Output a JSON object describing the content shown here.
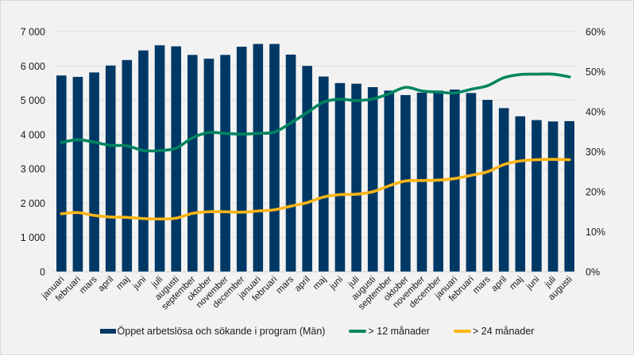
{
  "chart_data": {
    "type": "bar",
    "title": "",
    "xlabel": "",
    "ylabel": "",
    "y2label": "",
    "ylim": [
      0,
      7000
    ],
    "y2lim": [
      0,
      0.6
    ],
    "yticks": [
      "0",
      "1 000",
      "2 000",
      "3 000",
      "4 000",
      "5 000",
      "6 000",
      "7 000"
    ],
    "y2ticks": [
      "0%",
      "10%",
      "20%",
      "30%",
      "40%",
      "50%",
      "60%"
    ],
    "grid": true,
    "legend_position": "bottom",
    "categories": [
      "januari",
      "februari",
      "mars",
      "april",
      "maj",
      "juni",
      "juli",
      "augusti",
      "september",
      "oktober",
      "november",
      "december",
      "januari",
      "februari",
      "mars",
      "april",
      "maj",
      "juni",
      "juli",
      "augusti",
      "september",
      "oktober",
      "november",
      "december",
      "januari",
      "februari",
      "mars",
      "april",
      "maj",
      "juni",
      "juli",
      "augusti"
    ],
    "series": [
      {
        "name": "Öppet arbetslösa och sökande i program (Män)",
        "type": "bar",
        "axis": "left",
        "color": "#003865",
        "values": [
          5730,
          5690,
          5820,
          6020,
          6180,
          6460,
          6610,
          6580,
          6330,
          6220,
          6330,
          6570,
          6650,
          6650,
          6340,
          6010,
          5700,
          5510,
          5490,
          5390,
          5290,
          5160,
          5230,
          5290,
          5320,
          5220,
          5020,
          4780,
          4540,
          4430,
          4390,
          4400
        ]
      },
      {
        "name": "> 12 månader",
        "type": "line",
        "axis": "right",
        "color": "#00845f",
        "values": [
          0.323,
          0.33,
          0.324,
          0.316,
          0.315,
          0.303,
          0.303,
          0.309,
          0.335,
          0.348,
          0.346,
          0.344,
          0.346,
          0.349,
          0.372,
          0.398,
          0.424,
          0.431,
          0.428,
          0.432,
          0.445,
          0.461,
          0.452,
          0.449,
          0.447,
          0.456,
          0.465,
          0.485,
          0.493,
          0.494,
          0.494,
          0.487
        ]
      },
      {
        "name": "> 24 månader",
        "type": "line",
        "axis": "right",
        "color": "#fdb515",
        "values": [
          0.145,
          0.148,
          0.141,
          0.137,
          0.136,
          0.133,
          0.132,
          0.134,
          0.146,
          0.15,
          0.15,
          0.149,
          0.152,
          0.155,
          0.164,
          0.173,
          0.187,
          0.193,
          0.194,
          0.2,
          0.215,
          0.227,
          0.228,
          0.229,
          0.233,
          0.241,
          0.25,
          0.268,
          0.277,
          0.28,
          0.281,
          0.28
        ]
      }
    ]
  }
}
